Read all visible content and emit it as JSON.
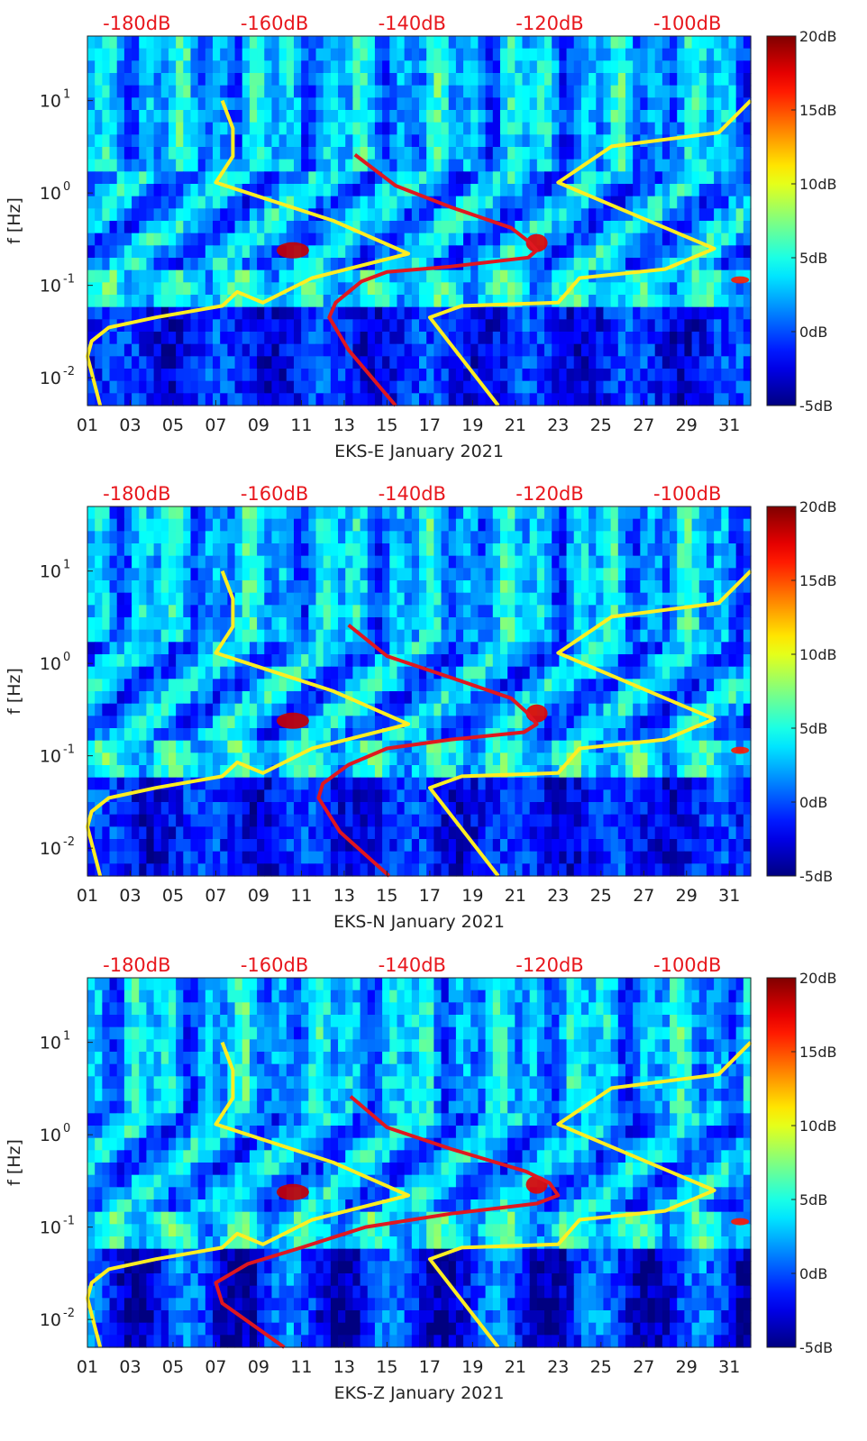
{
  "chart_data": [
    {
      "type": "heatmap",
      "title": "",
      "xlabel": "EKS-E January 2021",
      "ylabel": "f [Hz]",
      "x_ticks": [
        "01",
        "03",
        "05",
        "07",
        "09",
        "11",
        "13",
        "15",
        "17",
        "19",
        "21",
        "23",
        "25",
        "27",
        "29",
        "31"
      ],
      "xlim_days": [
        1,
        32
      ],
      "y_scale": "log",
      "ylim_hz": [
        0.005,
        50
      ],
      "y_ticks": [
        {
          "base": "10",
          "exp": "-2"
        },
        {
          "base": "10",
          "exp": "-1"
        },
        {
          "base": "10",
          "exp": "0"
        },
        {
          "base": "10",
          "exp": "1"
        }
      ],
      "top_axis_labels": [
        "-180dB",
        "-160dB",
        "-140dB",
        "-120dB",
        "-100dB"
      ],
      "colorbar": {
        "ticks": [
          "20dB",
          "15dB",
          "10dB",
          "5dB",
          "0dB",
          "-5dB"
        ],
        "range_db": [
          -5,
          20
        ],
        "colormap": "jet"
      },
      "series": [
        {
          "color": "#ffee22",
          "points": [
            [
              7.3,
              10
            ],
            [
              7.8,
              5
            ],
            [
              7.8,
              2.5
            ],
            [
              7,
              1.3
            ],
            [
              12.5,
              0.5
            ],
            [
              16,
              0.22
            ],
            [
              11.5,
              0.12
            ],
            [
              9.2,
              0.065
            ],
            [
              8,
              0.085
            ],
            [
              7.3,
              0.06
            ],
            [
              4.2,
              0.045
            ],
            [
              2,
              0.035
            ],
            [
              1.2,
              0.025
            ],
            [
              1,
              0.017
            ],
            [
              1.6,
              0.005
            ]
          ]
        },
        {
          "color": "#ffee22",
          "points": [
            [
              32,
              10
            ],
            [
              30.5,
              4.5
            ],
            [
              25.5,
              3.2
            ],
            [
              23,
              1.3
            ],
            [
              30.3,
              0.25
            ],
            [
              28,
              0.15
            ],
            [
              24,
              0.12
            ],
            [
              23,
              0.065
            ],
            [
              18.5,
              0.06
            ],
            [
              17,
              0.045
            ],
            [
              20.2,
              0.005
            ]
          ]
        },
        {
          "color": "#e0171f",
          "points": [
            [
              13.5,
              2.6
            ],
            [
              15.4,
              1.2
            ],
            [
              18,
              0.7
            ],
            [
              20.8,
              0.42
            ],
            [
              21.6,
              0.3
            ],
            [
              22,
              0.24
            ],
            [
              21.6,
              0.2
            ],
            [
              18,
              0.16
            ],
            [
              15,
              0.14
            ],
            [
              13.8,
              0.11
            ],
            [
              12.6,
              0.065
            ],
            [
              12.3,
              0.045
            ],
            [
              13.2,
              0.02
            ],
            [
              15.4,
              0.005
            ]
          ]
        }
      ]
    },
    {
      "type": "heatmap",
      "title": "",
      "xlabel": "EKS-N January 2021",
      "ylabel": "f [Hz]",
      "x_ticks": [
        "01",
        "03",
        "05",
        "07",
        "09",
        "11",
        "13",
        "15",
        "17",
        "19",
        "21",
        "23",
        "25",
        "27",
        "29",
        "31"
      ],
      "xlim_days": [
        1,
        32
      ],
      "y_scale": "log",
      "ylim_hz": [
        0.005,
        50
      ],
      "y_ticks": [
        {
          "base": "10",
          "exp": "-2"
        },
        {
          "base": "10",
          "exp": "-1"
        },
        {
          "base": "10",
          "exp": "0"
        },
        {
          "base": "10",
          "exp": "1"
        }
      ],
      "top_axis_labels": [
        "-180dB",
        "-160dB",
        "-140dB",
        "-120dB",
        "-100dB"
      ],
      "colorbar": {
        "ticks": [
          "20dB",
          "15dB",
          "10dB",
          "5dB",
          "0dB",
          "-5dB"
        ],
        "range_db": [
          -5,
          20
        ],
        "colormap": "jet"
      },
      "series": [
        {
          "color": "#ffee22",
          "points": [
            [
              7.3,
              10
            ],
            [
              7.8,
              5
            ],
            [
              7.8,
              2.5
            ],
            [
              7,
              1.3
            ],
            [
              12.5,
              0.5
            ],
            [
              16,
              0.22
            ],
            [
              11.5,
              0.12
            ],
            [
              9.2,
              0.065
            ],
            [
              8,
              0.085
            ],
            [
              7.3,
              0.06
            ],
            [
              4.2,
              0.045
            ],
            [
              2,
              0.035
            ],
            [
              1.2,
              0.025
            ],
            [
              1,
              0.017
            ],
            [
              1.6,
              0.005
            ]
          ]
        },
        {
          "color": "#ffee22",
          "points": [
            [
              32,
              10
            ],
            [
              30.5,
              4.5
            ],
            [
              25.5,
              3.2
            ],
            [
              23,
              1.3
            ],
            [
              30.3,
              0.25
            ],
            [
              28,
              0.15
            ],
            [
              24,
              0.12
            ],
            [
              23,
              0.065
            ],
            [
              18.5,
              0.06
            ],
            [
              17,
              0.045
            ],
            [
              20.2,
              0.005
            ]
          ]
        },
        {
          "color": "#e0171f",
          "points": [
            [
              13.2,
              2.6
            ],
            [
              15,
              1.2
            ],
            [
              18,
              0.7
            ],
            [
              20.8,
              0.42
            ],
            [
              21.5,
              0.3
            ],
            [
              22,
              0.22
            ],
            [
              21.4,
              0.18
            ],
            [
              18,
              0.15
            ],
            [
              15,
              0.12
            ],
            [
              13.2,
              0.08
            ],
            [
              12,
              0.05
            ],
            [
              11.8,
              0.035
            ],
            [
              12.8,
              0.015
            ],
            [
              15.1,
              0.005
            ]
          ]
        }
      ]
    },
    {
      "type": "heatmap",
      "title": "",
      "xlabel": "EKS-Z January 2021",
      "ylabel": "f [Hz]",
      "x_ticks": [
        "01",
        "03",
        "05",
        "07",
        "09",
        "11",
        "13",
        "15",
        "17",
        "19",
        "21",
        "23",
        "25",
        "27",
        "29",
        "31"
      ],
      "xlim_days": [
        1,
        32
      ],
      "y_scale": "log",
      "ylim_hz": [
        0.005,
        50
      ],
      "y_ticks": [
        {
          "base": "10",
          "exp": "-2"
        },
        {
          "base": "10",
          "exp": "-1"
        },
        {
          "base": "10",
          "exp": "0"
        },
        {
          "base": "10",
          "exp": "1"
        }
      ],
      "top_axis_labels": [
        "-180dB",
        "-160dB",
        "-140dB",
        "-120dB",
        "-100dB"
      ],
      "colorbar": {
        "ticks": [
          "20dB",
          "15dB",
          "10dB",
          "5dB",
          "0dB",
          "-5dB"
        ],
        "range_db": [
          -5,
          20
        ],
        "colormap": "jet"
      },
      "series": [
        {
          "color": "#ffee22",
          "points": [
            [
              7.3,
              10
            ],
            [
              7.8,
              5
            ],
            [
              7.8,
              2.5
            ],
            [
              7,
              1.3
            ],
            [
              12.5,
              0.5
            ],
            [
              16,
              0.22
            ],
            [
              11.5,
              0.12
            ],
            [
              9.2,
              0.065
            ],
            [
              8,
              0.085
            ],
            [
              7.3,
              0.06
            ],
            [
              4.2,
              0.045
            ],
            [
              2,
              0.035
            ],
            [
              1.2,
              0.025
            ],
            [
              1,
              0.017
            ],
            [
              1.6,
              0.005
            ]
          ]
        },
        {
          "color": "#ffee22",
          "points": [
            [
              32,
              10
            ],
            [
              30.5,
              4.5
            ],
            [
              25.5,
              3.2
            ],
            [
              23,
              1.3
            ],
            [
              30.3,
              0.25
            ],
            [
              28,
              0.15
            ],
            [
              24,
              0.12
            ],
            [
              23,
              0.065
            ],
            [
              18.5,
              0.06
            ],
            [
              17,
              0.045
            ],
            [
              20.2,
              0.005
            ]
          ]
        },
        {
          "color": "#e0171f",
          "points": [
            [
              13.3,
              2.6
            ],
            [
              15,
              1.2
            ],
            [
              18,
              0.7
            ],
            [
              21.5,
              0.4
            ],
            [
              22.6,
              0.3
            ],
            [
              23,
              0.22
            ],
            [
              22,
              0.18
            ],
            [
              18,
              0.14
            ],
            [
              14,
              0.1
            ],
            [
              11,
              0.06
            ],
            [
              8.5,
              0.04
            ],
            [
              7,
              0.025
            ],
            [
              7.3,
              0.015
            ],
            [
              10.2,
              0.005
            ]
          ]
        }
      ]
    }
  ]
}
